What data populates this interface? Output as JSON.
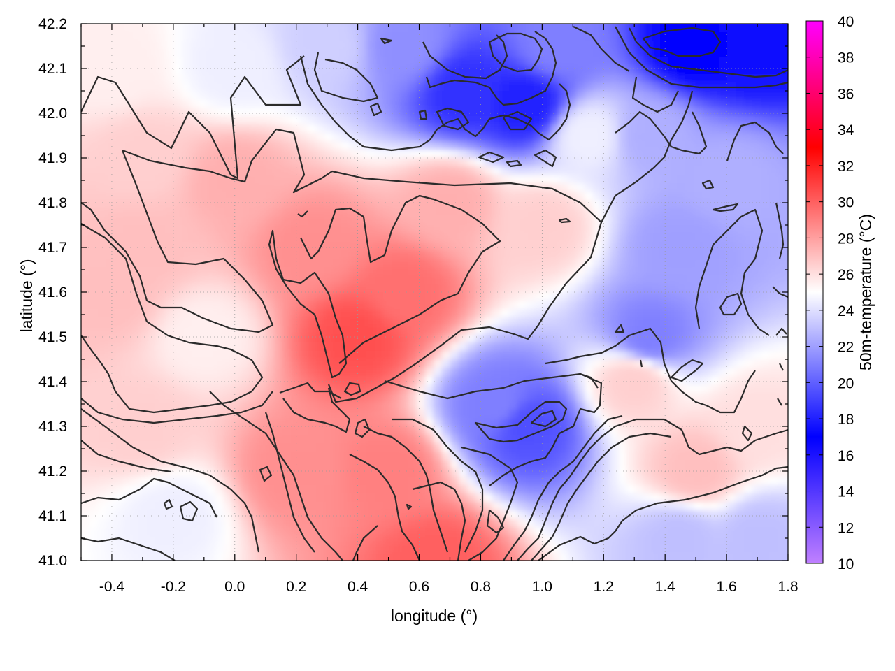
{
  "chart_data": {
    "type": "heatmap",
    "title": "",
    "xlabel": "longitude (°)",
    "ylabel": "latitude (°)",
    "colorbar_label": "50m-temperature (°C)",
    "xlim": [
      -0.5,
      1.8
    ],
    "ylim": [
      41.0,
      42.2
    ],
    "zlim": [
      10,
      40
    ],
    "x_ticks": [
      "-0.4",
      "-0.2",
      "0.0",
      "0.2",
      "0.4",
      "0.6",
      "0.8",
      "1.0",
      "1.2",
      "1.4",
      "1.6",
      "1.8"
    ],
    "y_ticks": [
      "41.0",
      "41.1",
      "41.2",
      "41.3",
      "41.4",
      "41.5",
      "41.6",
      "41.7",
      "41.8",
      "41.9",
      "42.0",
      "42.1",
      "42.2"
    ],
    "colorbar_ticks": [
      "10",
      "12",
      "14",
      "16",
      "18",
      "20",
      "22",
      "24",
      "26",
      "28",
      "30",
      "32",
      "34",
      "36",
      "38",
      "40"
    ],
    "colormap": [
      {
        "value": 10,
        "color": "#c080ff"
      },
      {
        "value": 17,
        "color": "#0000ff"
      },
      {
        "value": 25,
        "color": "#ffffff"
      },
      {
        "value": 33,
        "color": "#ff0000"
      },
      {
        "value": 40,
        "color": "#ff00ff"
      }
    ],
    "grid": true,
    "colorbar_position": "right",
    "field_samples": [
      {
        "lon": 0.4,
        "lat": 41.5,
        "temp": 30.5
      },
      {
        "lon": 0.55,
        "lat": 41.6,
        "temp": 29.5
      },
      {
        "lon": 0.25,
        "lat": 41.7,
        "temp": 28.5
      },
      {
        "lon": 0.65,
        "lat": 41.0,
        "temp": 30.0
      },
      {
        "lon": 0.5,
        "lat": 41.2,
        "temp": 29.0
      },
      {
        "lon": 0.2,
        "lat": 41.2,
        "temp": 28.5
      },
      {
        "lon": 0.0,
        "lat": 41.85,
        "temp": 27.5
      },
      {
        "lon": -0.3,
        "lat": 41.7,
        "temp": 27.0
      },
      {
        "lon": -0.4,
        "lat": 41.6,
        "temp": 27.0
      },
      {
        "lon": -0.1,
        "lat": 41.5,
        "temp": 25.5
      },
      {
        "lon": -0.3,
        "lat": 41.3,
        "temp": 26.5
      },
      {
        "lon": -0.2,
        "lat": 41.1,
        "temp": 24.5
      },
      {
        "lon": 0.7,
        "lat": 41.8,
        "temp": 27.5
      },
      {
        "lon": 1.0,
        "lat": 41.75,
        "temp": 26.5
      },
      {
        "lon": 1.3,
        "lat": 41.4,
        "temp": 26.5
      },
      {
        "lon": 1.5,
        "lat": 41.2,
        "temp": 27.0
      },
      {
        "lon": 1.7,
        "lat": 41.3,
        "temp": 26.0
      },
      {
        "lon": 1.45,
        "lat": 41.05,
        "temp": 23.0
      },
      {
        "lon": 1.7,
        "lat": 41.05,
        "temp": 23.0
      },
      {
        "lon": 0.95,
        "lat": 41.3,
        "temp": 19.5
      },
      {
        "lon": 0.85,
        "lat": 41.35,
        "temp": 21.0
      },
      {
        "lon": 1.35,
        "lat": 41.5,
        "temp": 21.0
      },
      {
        "lon": 1.45,
        "lat": 41.7,
        "temp": 22.0
      },
      {
        "lon": 1.6,
        "lat": 41.85,
        "temp": 22.5
      },
      {
        "lon": 1.35,
        "lat": 41.95,
        "temp": 22.5
      },
      {
        "lon": 0.55,
        "lat": 42.15,
        "temp": 21.5
      },
      {
        "lon": 0.75,
        "lat": 42.05,
        "temp": 18.5
      },
      {
        "lon": 0.95,
        "lat": 42.02,
        "temp": 18.0
      },
      {
        "lon": 1.05,
        "lat": 42.15,
        "temp": 21.0
      },
      {
        "lon": 1.5,
        "lat": 42.15,
        "temp": 17.0
      },
      {
        "lon": 1.7,
        "lat": 42.15,
        "temp": 17.5
      },
      {
        "lon": 0.3,
        "lat": 42.15,
        "temp": 23.5
      },
      {
        "lon": 0.0,
        "lat": 42.1,
        "temp": 24.5
      },
      {
        "lon": -0.4,
        "lat": 42.1,
        "temp": 25.5
      },
      {
        "lon": -0.3,
        "lat": 41.9,
        "temp": 26.5
      },
      {
        "lon": 1.15,
        "lat": 41.95,
        "temp": 24.5
      }
    ]
  }
}
